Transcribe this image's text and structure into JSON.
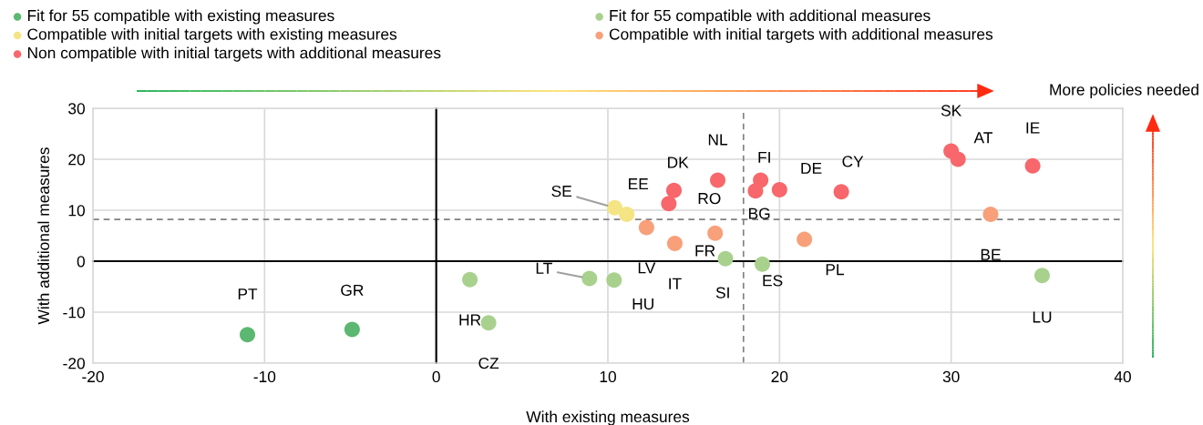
{
  "chart_data": {
    "type": "scatter",
    "xlabel": "With existing measures",
    "ylabel": "With additional measures",
    "xlim": [
      -20,
      40
    ],
    "xticks": [
      -20,
      -10,
      0,
      10,
      20,
      30,
      40
    ],
    "ylim": [
      -20,
      30
    ],
    "yticks": [
      -20,
      -10,
      0,
      10,
      20,
      30
    ],
    "grid": true,
    "legend": "top",
    "marker": "circle",
    "series": [
      {
        "name": "Fit for 55 compatible with existing measures",
        "color": "#5cb870",
        "x": [
          -11.0,
          -4.9
        ],
        "values": [
          -14.4,
          -13.4
        ]
      },
      {
        "name": "Compatible with initial targets with existing measures",
        "color": "#f5e483",
        "x": [
          10.4,
          11.1
        ],
        "values": [
          10.5,
          9.2
        ]
      },
      {
        "name": "Non compatible with initial targets with additional measures",
        "color": "#f7676b",
        "x": [
          13.85,
          13.55,
          16.4,
          18.6,
          18.9,
          20.0,
          23.6,
          30.0,
          30.4,
          34.75
        ],
        "values": [
          13.9,
          11.3,
          15.9,
          13.8,
          15.9,
          14.0,
          13.6,
          21.6,
          20.0,
          18.7
        ]
      },
      {
        "name": "Fit for 55 compatible with additional measures",
        "color": "#a9d18e",
        "x": [
          1.96,
          3.05,
          8.93,
          10.36,
          16.85,
          19.0,
          35.3
        ],
        "values": [
          -3.6,
          -12.1,
          -3.4,
          -3.7,
          0.5,
          -0.6,
          -2.8
        ]
      },
      {
        "name": "Compatible with initial targets with additional measures",
        "color": "#f8a07a",
        "x": [
          12.25,
          13.9,
          16.25,
          21.45,
          32.3
        ],
        "values": [
          6.6,
          3.5,
          5.5,
          4.3,
          9.2
        ]
      }
    ],
    "ref_lines": [
      {
        "axis": "x",
        "value": 17.9,
        "color": "#808080",
        "line_style": "dashed"
      },
      {
        "axis": "y",
        "value": 8.2,
        "color": "#808080",
        "line_style": "dashed"
      }
    ],
    "annotations": [
      {
        "text": "PT",
        "x": -11.0,
        "y": -14.4
      },
      {
        "text": "GR",
        "x": -4.9,
        "y": -13.4
      },
      {
        "text": "HR",
        "x": 1.96,
        "y": -3.6
      },
      {
        "text": "CZ",
        "x": 3.05,
        "y": -12.1
      },
      {
        "text": "LT",
        "x": 8.93,
        "y": -3.4
      },
      {
        "text": "HU",
        "x": 10.36,
        "y": -3.7
      },
      {
        "text": "SE",
        "x": 10.4,
        "y": 10.5
      },
      {
        "text": "EE",
        "x": 11.1,
        "y": 9.2
      },
      {
        "text": "LV",
        "x": 12.25,
        "y": 6.6
      },
      {
        "text": "IT",
        "x": 13.9,
        "y": 3.5
      },
      {
        "text": "DK",
        "x": 13.85,
        "y": 13.9
      },
      {
        "text": "RO",
        "x": 13.55,
        "y": 11.3
      },
      {
        "text": "NL",
        "x": 16.4,
        "y": 15.9
      },
      {
        "text": "FR",
        "x": 16.25,
        "y": 5.5
      },
      {
        "text": "SI",
        "x": 16.85,
        "y": 0.5
      },
      {
        "text": "BG",
        "x": 18.6,
        "y": 13.8
      },
      {
        "text": "FI",
        "x": 18.9,
        "y": 15.9
      },
      {
        "text": "DE",
        "x": 20.0,
        "y": 14.0
      },
      {
        "text": "ES",
        "x": 19.0,
        "y": -0.6
      },
      {
        "text": "PL",
        "x": 21.45,
        "y": 4.3
      },
      {
        "text": "CY",
        "x": 23.6,
        "y": 13.6
      },
      {
        "text": "SK",
        "x": 30.0,
        "y": 21.6
      },
      {
        "text": "AT",
        "x": 30.4,
        "y": 20.0
      },
      {
        "text": "IE",
        "x": 34.75,
        "y": 18.7
      },
      {
        "text": "BE",
        "x": 32.3,
        "y": 9.2
      },
      {
        "text": "LU",
        "x": 35.3,
        "y": -2.8
      },
      "More policies needed"
    ]
  }
}
